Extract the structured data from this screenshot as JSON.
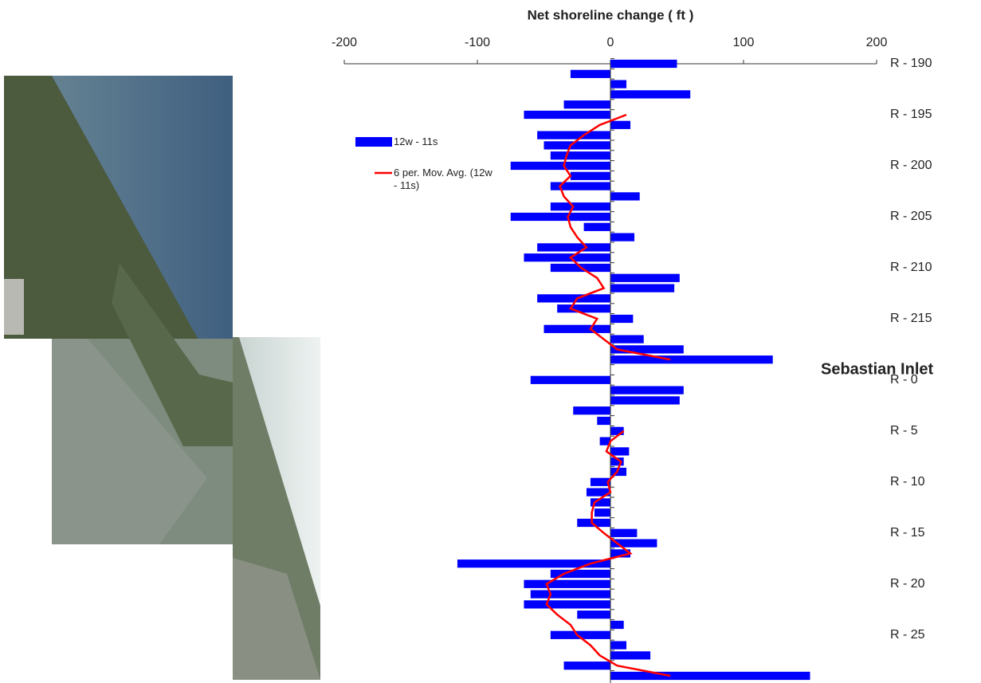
{
  "chart_data": {
    "type": "bar",
    "orientation": "horizontal",
    "title": "Net shoreline change ( ft )",
    "annotation": "Sebastian Inlet",
    "annotation_index": 30,
    "categories": [
      "R - 190",
      null,
      null,
      null,
      null,
      "R - 195",
      null,
      null,
      null,
      null,
      "R - 200",
      null,
      null,
      null,
      null,
      "R - 205",
      null,
      null,
      null,
      null,
      "R - 210",
      null,
      null,
      null,
      null,
      "R - 215",
      null,
      null,
      null,
      null,
      null,
      "R - 0",
      null,
      null,
      null,
      null,
      "R - 5",
      null,
      null,
      null,
      null,
      "R - 10",
      null,
      null,
      null,
      null,
      "R - 15",
      null,
      null,
      null,
      null,
      "R - 20",
      null,
      null,
      null,
      null,
      "R - 25",
      null,
      null,
      null,
      null
    ],
    "series": [
      {
        "name": "12w - 11s",
        "kind": "bar",
        "color": "#0000ff",
        "values": [
          50,
          -30,
          12,
          60,
          -35,
          -65,
          15,
          -55,
          -50,
          -45,
          -75,
          -30,
          -45,
          22,
          -45,
          -75,
          -20,
          18,
          -55,
          -65,
          -45,
          52,
          48,
          -55,
          -40,
          17,
          -50,
          25,
          55,
          122,
          null,
          -60,
          55,
          52,
          -28,
          -10,
          10,
          -8,
          14,
          10,
          12,
          -15,
          -18,
          -15,
          -12,
          -25,
          20,
          35,
          15,
          -115,
          -45,
          -65,
          -60,
          -65,
          -25,
          10,
          -45,
          12,
          30,
          -35,
          150
        ]
      },
      {
        "name": "6 per. Mov. Avg. (12w - 11s)",
        "kind": "line",
        "color": "#ff0000",
        "values": [
          null,
          null,
          null,
          null,
          null,
          12,
          -8,
          -20,
          -30,
          -33,
          -35,
          -30,
          -38,
          -35,
          -28,
          -32,
          -30,
          -25,
          -18,
          -30,
          -22,
          -10,
          -5,
          -25,
          -30,
          -10,
          -15,
          -5,
          5,
          45,
          null,
          null,
          null,
          null,
          null,
          null,
          10,
          0,
          -3,
          8,
          5,
          -2,
          0,
          -12,
          -14,
          -14,
          -5,
          5,
          15,
          -15,
          -35,
          -48,
          -45,
          -48,
          -40,
          -30,
          -25,
          -15,
          -8,
          5,
          45
        ]
      }
    ],
    "xlim": [
      -200,
      200
    ],
    "xticks": [
      -200,
      -100,
      0,
      100,
      200
    ]
  }
}
